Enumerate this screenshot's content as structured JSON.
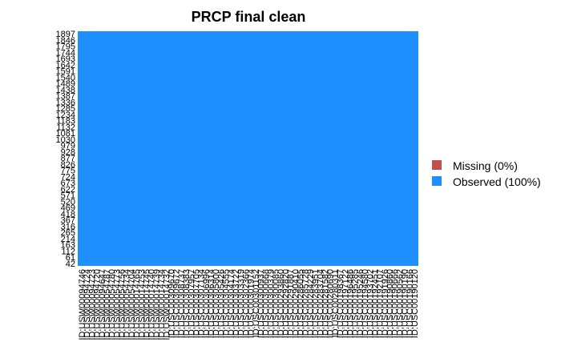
{
  "chart_data": {
    "type": "heatmap",
    "title": "PRCP final clean",
    "xlabel": "",
    "ylabel": "",
    "y_tick_labels": [
      "1897",
      "1846",
      "1795",
      "1744",
      "1693",
      "1642",
      "1591",
      "1540",
      "1489",
      "1438",
      "1387",
      "1336",
      "1285",
      "1234",
      "1183",
      "1132",
      "1081",
      "1030",
      "979",
      "928",
      "877",
      "826",
      "775",
      "724",
      "673",
      "622",
      "571",
      "520",
      "469",
      "418",
      "367",
      "316",
      "265",
      "214",
      "163",
      "112",
      "61",
      "42"
    ],
    "x_tick_labels": [
      "ID:USW00094746",
      "ID:USW00094724",
      "ID:USW00094723",
      "ID:USW00094720",
      "ID:USW00094647",
      "ID:USW00054787",
      "ID:USW00054780",
      "ID:USW00054773",
      "ID:USW00054756",
      "ID:USW00054734",
      "ID:USW00054704",
      "ID:USW00014765",
      "ID:USW00014753",
      "ID:USW00014745",
      "ID:USW00014740",
      "ID:USW00014739",
      "ID:USW00014734",
      "ID:USW00014732",
      "ID:USC00309670",
      "ID:USC00309672",
      "ID:USC00308737",
      "ID:USC00308383",
      "ID:USC00307957",
      "ID:USC00307705",
      "ID:USC00307134",
      "ID:USC00306996",
      "ID:USC00306314",
      "ID:USC00305800",
      "ID:USC00305426",
      "ID:USC00304555",
      "ID:USC00304174",
      "ID:USC00303722",
      "ID:USC00303319",
      "ID:USC00302366",
      "ID:USC00301974",
      "ID:USC00301152",
      "ID:USC00300937",
      "ID:USC00300668",
      "ID:USC00300379",
      "ID:USC00300085",
      "ID:USC00293860",
      "ID:USC00292820",
      "ID:USC00291887",
      "ID:USC00290410",
      "ID:USC00286055",
      "ID:USC00285728",
      "ID:USC00284229",
      "ID:USC00283951",
      "ID:USC00283704",
      "ID:USC00281582",
      "ID:USC00280690",
      "ID:USC00280311",
      "ID:USC00198367",
      "ID:USC00197122",
      "ID:USC00196486",
      "ID:USC00195285",
      "ID:USC00195246",
      "ID:USC00194580",
      "ID:USC00193702",
      "ID:USC00192451",
      "ID:USC00192107",
      "ID:USC00191926",
      "ID:USC00190860",
      "ID:USC00190666",
      "ID:USC00190562",
      "ID:USC00190190",
      "ID:USC00190166",
      "ID:USC00190120"
    ],
    "series": [
      {
        "name": "Missing (0%)",
        "percent": 0,
        "color": "#c0504d"
      },
      {
        "name": "Observed (100%)",
        "percent": 100,
        "color": "#1e90ff"
      }
    ],
    "legend_position": "right",
    "grid": false
  }
}
